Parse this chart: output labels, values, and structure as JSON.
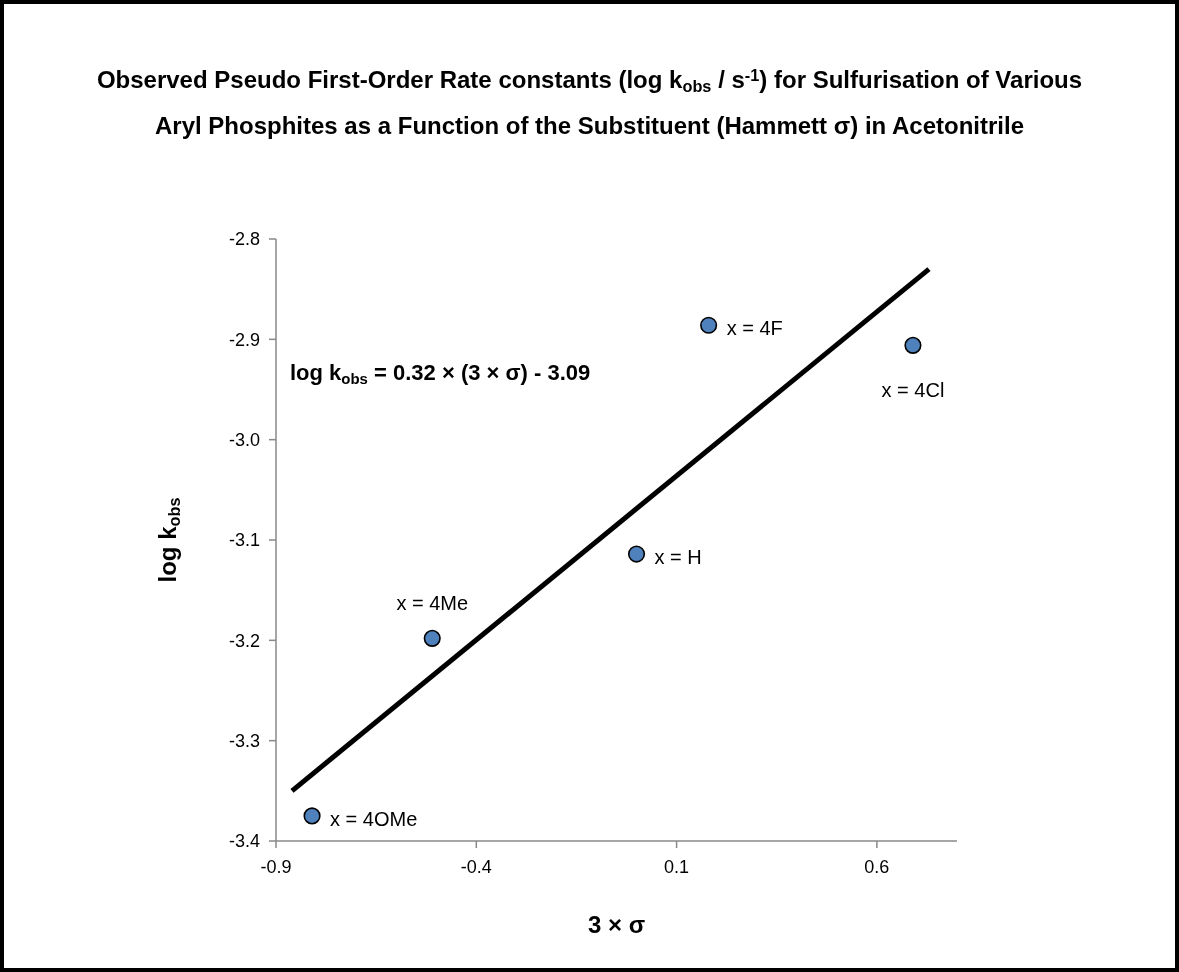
{
  "chart_data": {
    "type": "scatter",
    "title": "Observed Pseudo First-Order Rate constants (log k$_{obs}$ / s$^{-1}$) for Sulfurisation of Various Aryl Phosphites as a Function of the Substituent (Hammett σ) in Acetonitrile",
    "xlabel": "3 × σ",
    "ylabel": "log k$_{obs}$",
    "series": [
      {
        "color": "#4f81bd",
        "marker": "circle",
        "x": [
          -0.81,
          -0.51,
          0.0,
          0.18,
          0.69
        ],
        "values": [
          -3.375,
          -3.198,
          -3.114,
          -2.886,
          -2.906
        ]
      },
      {
        "type": "line",
        "color": "#000000",
        "marker": "none",
        "line_style": "solid",
        "x": [
          -0.86,
          0.73
        ],
        "values": [
          -3.35,
          -2.83
        ]
      }
    ],
    "annotations": [
      {
        "text": "x = 4OMe",
        "x": -0.81,
        "y": -3.375
      },
      {
        "text": "x = 4Me",
        "x": -0.51,
        "y": -3.198
      },
      {
        "text": "x = H",
        "x": 0.0,
        "y": -3.114
      },
      {
        "text": "x = 4F",
        "x": 0.18,
        "y": -2.886
      },
      {
        "text": "x = 4Cl",
        "x": 0.69,
        "y": -2.906
      },
      "log k$_{obs}$ = 0.32 × (3 × σ) - 3.09"
    ],
    "xlim": [
      -0.9,
      0.8
    ],
    "xticks": [
      -0.9,
      -0.4,
      0.1,
      0.6
    ],
    "ylim": [
      -3.4,
      -2.8
    ],
    "yticks": [
      -3.4,
      -3.3,
      -3.2,
      -3.1,
      {
        "value": -3.0,
        "label": "-3.0"
      },
      -2.9,
      -2.8
    ],
    "grid": false
  }
}
